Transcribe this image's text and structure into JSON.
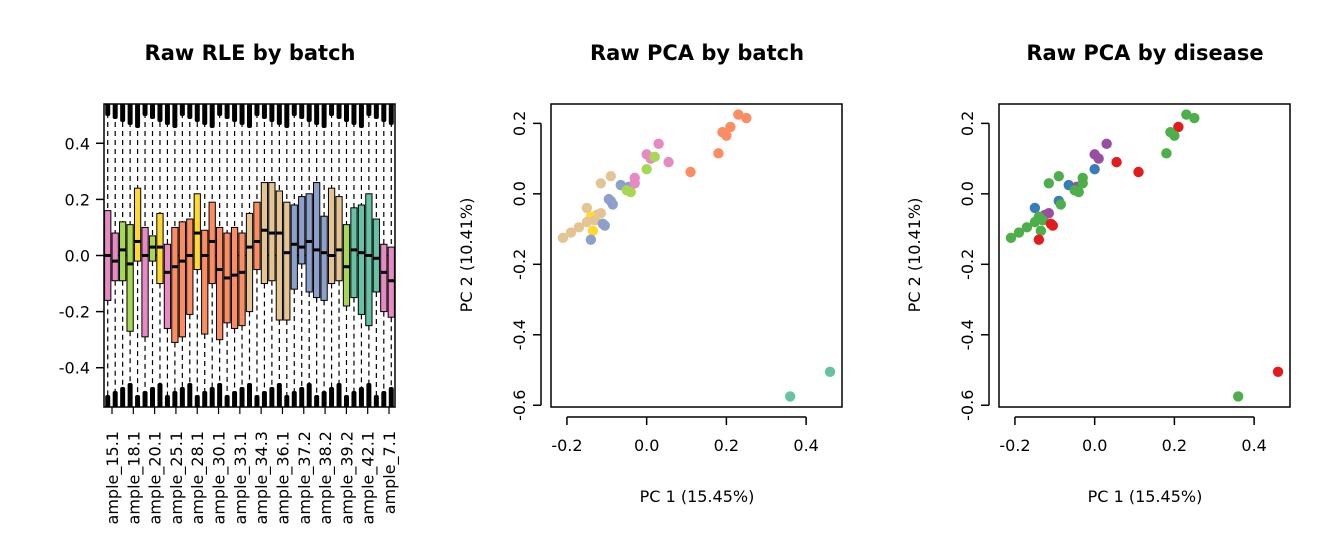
{
  "chart_data": [
    {
      "type": "boxplot",
      "title": "Raw RLE by batch",
      "xlabel": "",
      "ylabel": "",
      "ylim": [
        -0.54,
        0.54
      ],
      "yticks": [
        -0.4,
        -0.2,
        0.0,
        0.2,
        0.4
      ],
      "ytick_labels": [
        "-0.4",
        "-0.2",
        "0.0",
        "0.2",
        "0.4"
      ],
      "reference_line": 0,
      "category_labels": [
        "ample_15.1",
        "ample_18.1",
        "ample_20.1",
        "ample_25.1",
        "ample_28.1",
        "ample_30.1",
        "ample_33.1",
        "ample_34.3",
        "ample_36.1",
        "ample_37.2",
        "ample_38.2",
        "ample_39.2",
        "ample_42.1",
        "ample_7.1"
      ],
      "boxes": [
        {
          "color": "#e78ac3",
          "q1": -0.16,
          "median": 0.0,
          "q3": 0.16
        },
        {
          "color": "#e78ac3",
          "q1": -0.09,
          "median": -0.02,
          "q3": 0.08
        },
        {
          "color": "#a6d854",
          "q1": -0.09,
          "median": 0.02,
          "q3": 0.12
        },
        {
          "color": "#a6d854",
          "q1": -0.27,
          "median": -0.03,
          "q3": 0.11
        },
        {
          "color": "#ffd92f",
          "q1": -0.02,
          "median": 0.05,
          "q3": 0.24
        },
        {
          "color": "#e78ac3",
          "q1": -0.29,
          "median": 0.0,
          "q3": 0.1
        },
        {
          "color": "#a6d854",
          "q1": -0.02,
          "median": 0.03,
          "q3": 0.07
        },
        {
          "color": "#ffd92f",
          "q1": -0.1,
          "median": 0.03,
          "q3": 0.15
        },
        {
          "color": "#e78ac3",
          "q1": -0.26,
          "median": -0.06,
          "q3": 0.04
        },
        {
          "color": "#fc8d62",
          "q1": -0.31,
          "median": -0.04,
          "q3": 0.1
        },
        {
          "color": "#fc8d62",
          "q1": -0.29,
          "median": -0.02,
          "q3": 0.12
        },
        {
          "color": "#fc8d62",
          "q1": -0.21,
          "median": 0.0,
          "q3": 0.13
        },
        {
          "color": "#ffd92f",
          "q1": -0.05,
          "median": 0.08,
          "q3": 0.22
        },
        {
          "color": "#fc8d62",
          "q1": -0.28,
          "median": 0.0,
          "q3": 0.09
        },
        {
          "color": "#fc8d62",
          "q1": -0.1,
          "median": 0.05,
          "q3": 0.19
        },
        {
          "color": "#fc8d62",
          "q1": -0.3,
          "median": -0.05,
          "q3": 0.1
        },
        {
          "color": "#fc8d62",
          "q1": -0.24,
          "median": -0.08,
          "q3": 0.08
        },
        {
          "color": "#fc8d62",
          "q1": -0.26,
          "median": -0.07,
          "q3": 0.1
        },
        {
          "color": "#fc8d62",
          "q1": -0.25,
          "median": -0.06,
          "q3": 0.08
        },
        {
          "color": "#e5c494",
          "q1": -0.2,
          "median": 0.03,
          "q3": 0.15
        },
        {
          "color": "#fc8d62",
          "q1": -0.05,
          "median": 0.05,
          "q3": 0.19
        },
        {
          "color": "#e5c494",
          "q1": -0.1,
          "median": 0.09,
          "q3": 0.26
        },
        {
          "color": "#e5c494",
          "q1": -0.09,
          "median": 0.08,
          "q3": 0.26
        },
        {
          "color": "#e5c494",
          "q1": -0.23,
          "median": 0.08,
          "q3": 0.23
        },
        {
          "color": "#e5c494",
          "q1": -0.23,
          "median": 0.01,
          "q3": 0.19
        },
        {
          "color": "#8da0cb",
          "q1": -0.12,
          "median": 0.04,
          "q3": 0.18
        },
        {
          "color": "#8da0cb",
          "q1": -0.03,
          "median": 0.03,
          "q3": 0.21
        },
        {
          "color": "#8da0cb",
          "q1": -0.13,
          "median": 0.05,
          "q3": 0.22
        },
        {
          "color": "#8da0cb",
          "q1": -0.15,
          "median": 0.02,
          "q3": 0.26
        },
        {
          "color": "#8da0cb",
          "q1": -0.16,
          "median": 0.01,
          "q3": 0.14
        },
        {
          "color": "#e5c494",
          "q1": -0.1,
          "median": 0.0,
          "q3": 0.24
        },
        {
          "color": "#e5c494",
          "q1": -0.09,
          "median": 0.02,
          "q3": 0.21
        },
        {
          "color": "#a6d854",
          "q1": -0.18,
          "median": -0.04,
          "q3": 0.11
        },
        {
          "color": "#66c2a5",
          "q1": -0.15,
          "median": 0.02,
          "q3": 0.17
        },
        {
          "color": "#66c2a5",
          "q1": -0.21,
          "median": 0.01,
          "q3": 0.18
        },
        {
          "color": "#66c2a5",
          "q1": -0.25,
          "median": 0.0,
          "q3": 0.22
        },
        {
          "color": "#66c2a5",
          "q1": -0.13,
          "median": -0.01,
          "q3": 0.13
        },
        {
          "color": "#e78ac3",
          "q1": -0.2,
          "median": -0.06,
          "q3": 0.04
        },
        {
          "color": "#e78ac3",
          "q1": -0.22,
          "median": -0.09,
          "q3": 0.03
        }
      ]
    },
    {
      "type": "scatter",
      "title": "Raw PCA by batch",
      "xlabel": "PC 1 (15.45%)",
      "ylabel": "PC 2 (10.41%)",
      "xlim": [
        -0.24,
        0.49
      ],
      "ylim": [
        -0.605,
        0.255
      ],
      "xticks": [
        -0.2,
        0.0,
        0.2,
        0.4
      ],
      "xtick_labels": [
        "-0.2",
        "0.0",
        "0.2",
        "0.4"
      ],
      "yticks": [
        -0.6,
        -0.4,
        -0.2,
        0.0,
        0.2
      ],
      "ytick_labels": [
        "-0.6",
        "-0.4",
        "-0.2",
        "0.0",
        "0.2"
      ],
      "points": [
        {
          "x": 0.23,
          "y": 0.225,
          "color": "#fc8d62"
        },
        {
          "x": 0.25,
          "y": 0.215,
          "color": "#fc8d62"
        },
        {
          "x": 0.21,
          "y": 0.19,
          "color": "#fc8d62"
        },
        {
          "x": 0.19,
          "y": 0.175,
          "color": "#fc8d62"
        },
        {
          "x": 0.2,
          "y": 0.165,
          "color": "#fc8d62"
        },
        {
          "x": 0.18,
          "y": 0.115,
          "color": "#fc8d62"
        },
        {
          "x": 0.11,
          "y": 0.062,
          "color": "#fc8d62"
        },
        {
          "x": 0.03,
          "y": 0.142,
          "color": "#e78ac3"
        },
        {
          "x": 0.0,
          "y": 0.112,
          "color": "#e78ac3"
        },
        {
          "x": 0.01,
          "y": 0.1,
          "color": "#e78ac3"
        },
        {
          "x": 0.02,
          "y": 0.105,
          "color": "#a6d854"
        },
        {
          "x": 0.055,
          "y": 0.09,
          "color": "#e78ac3"
        },
        {
          "x": 0.0,
          "y": 0.07,
          "color": "#a6d854"
        },
        {
          "x": -0.09,
          "y": 0.05,
          "color": "#e5c494"
        },
        {
          "x": -0.115,
          "y": 0.03,
          "color": "#e5c494"
        },
        {
          "x": -0.065,
          "y": 0.025,
          "color": "#8da0cb"
        },
        {
          "x": -0.045,
          "y": 0.02,
          "color": "#8da0cb"
        },
        {
          "x": -0.05,
          "y": 0.01,
          "color": "#a6d854"
        },
        {
          "x": -0.04,
          "y": 0.005,
          "color": "#a6d854"
        },
        {
          "x": -0.03,
          "y": 0.045,
          "color": "#e78ac3"
        },
        {
          "x": -0.03,
          "y": 0.03,
          "color": "#e78ac3"
        },
        {
          "x": -0.09,
          "y": -0.02,
          "color": "#8da0cb"
        },
        {
          "x": -0.085,
          "y": -0.03,
          "color": "#8da0cb"
        },
        {
          "x": -0.095,
          "y": -0.015,
          "color": "#8da0cb"
        },
        {
          "x": -0.15,
          "y": -0.04,
          "color": "#e5c494"
        },
        {
          "x": -0.115,
          "y": -0.055,
          "color": "#e5c494"
        },
        {
          "x": -0.125,
          "y": -0.06,
          "color": "#e5c494"
        },
        {
          "x": -0.14,
          "y": -0.065,
          "color": "#ffd92f"
        },
        {
          "x": -0.13,
          "y": -0.075,
          "color": "#e5c494"
        },
        {
          "x": -0.15,
          "y": -0.08,
          "color": "#e5c494"
        },
        {
          "x": -0.17,
          "y": -0.095,
          "color": "#e5c494"
        },
        {
          "x": -0.11,
          "y": -0.085,
          "color": "#8da0cb"
        },
        {
          "x": -0.105,
          "y": -0.09,
          "color": "#8da0cb"
        },
        {
          "x": -0.135,
          "y": -0.105,
          "color": "#ffd92f"
        },
        {
          "x": -0.19,
          "y": -0.11,
          "color": "#e5c494"
        },
        {
          "x": -0.21,
          "y": -0.125,
          "color": "#e5c494"
        },
        {
          "x": -0.14,
          "y": -0.13,
          "color": "#8da0cb"
        },
        {
          "x": 0.46,
          "y": -0.505,
          "color": "#66c2a5"
        },
        {
          "x": 0.36,
          "y": -0.575,
          "color": "#66c2a5"
        }
      ]
    },
    {
      "type": "scatter",
      "title": "Raw PCA by disease",
      "xlabel": "PC 1 (15.45%)",
      "ylabel": "PC 2 (10.41%)",
      "xlim": [
        -0.24,
        0.49
      ],
      "ylim": [
        -0.605,
        0.255
      ],
      "xticks": [
        -0.2,
        0.0,
        0.2,
        0.4
      ],
      "xtick_labels": [
        "-0.2",
        "0.0",
        "0.2",
        "0.4"
      ],
      "yticks": [
        -0.6,
        -0.4,
        -0.2,
        0.0,
        0.2
      ],
      "ytick_labels": [
        "-0.6",
        "-0.4",
        "-0.2",
        "0.0",
        "0.2"
      ],
      "points": [
        {
          "x": 0.23,
          "y": 0.225,
          "color": "#4daf4a"
        },
        {
          "x": 0.25,
          "y": 0.215,
          "color": "#4daf4a"
        },
        {
          "x": 0.21,
          "y": 0.19,
          "color": "#e41a1c"
        },
        {
          "x": 0.19,
          "y": 0.175,
          "color": "#4daf4a"
        },
        {
          "x": 0.2,
          "y": 0.165,
          "color": "#4daf4a"
        },
        {
          "x": 0.18,
          "y": 0.115,
          "color": "#4daf4a"
        },
        {
          "x": 0.11,
          "y": 0.062,
          "color": "#e41a1c"
        },
        {
          "x": 0.03,
          "y": 0.142,
          "color": "#984ea3"
        },
        {
          "x": 0.0,
          "y": 0.112,
          "color": "#984ea3"
        },
        {
          "x": 0.01,
          "y": 0.1,
          "color": "#984ea3"
        },
        {
          "x": 0.055,
          "y": 0.09,
          "color": "#e41a1c"
        },
        {
          "x": 0.0,
          "y": 0.07,
          "color": "#377eb8"
        },
        {
          "x": -0.09,
          "y": 0.05,
          "color": "#4daf4a"
        },
        {
          "x": -0.115,
          "y": 0.03,
          "color": "#4daf4a"
        },
        {
          "x": -0.065,
          "y": 0.025,
          "color": "#377eb8"
        },
        {
          "x": -0.045,
          "y": 0.02,
          "color": "#984ea3"
        },
        {
          "x": -0.05,
          "y": 0.01,
          "color": "#4daf4a"
        },
        {
          "x": -0.04,
          "y": 0.005,
          "color": "#4daf4a"
        },
        {
          "x": -0.03,
          "y": 0.045,
          "color": "#4daf4a"
        },
        {
          "x": -0.03,
          "y": 0.03,
          "color": "#4daf4a"
        },
        {
          "x": -0.09,
          "y": -0.02,
          "color": "#377eb8"
        },
        {
          "x": -0.085,
          "y": -0.03,
          "color": "#4daf4a"
        },
        {
          "x": -0.15,
          "y": -0.04,
          "color": "#377eb8"
        },
        {
          "x": -0.115,
          "y": -0.055,
          "color": "#984ea3"
        },
        {
          "x": -0.125,
          "y": -0.06,
          "color": "#984ea3"
        },
        {
          "x": -0.14,
          "y": -0.065,
          "color": "#4daf4a"
        },
        {
          "x": -0.13,
          "y": -0.075,
          "color": "#4daf4a"
        },
        {
          "x": -0.15,
          "y": -0.08,
          "color": "#4daf4a"
        },
        {
          "x": -0.17,
          "y": -0.095,
          "color": "#4daf4a"
        },
        {
          "x": -0.11,
          "y": -0.085,
          "color": "#e41a1c"
        },
        {
          "x": -0.105,
          "y": -0.09,
          "color": "#e41a1c"
        },
        {
          "x": -0.135,
          "y": -0.105,
          "color": "#4daf4a"
        },
        {
          "x": -0.19,
          "y": -0.11,
          "color": "#4daf4a"
        },
        {
          "x": -0.21,
          "y": -0.125,
          "color": "#4daf4a"
        },
        {
          "x": -0.14,
          "y": -0.13,
          "color": "#e41a1c"
        },
        {
          "x": 0.46,
          "y": -0.505,
          "color": "#e41a1c"
        },
        {
          "x": 0.36,
          "y": -0.575,
          "color": "#4daf4a"
        }
      ]
    }
  ]
}
